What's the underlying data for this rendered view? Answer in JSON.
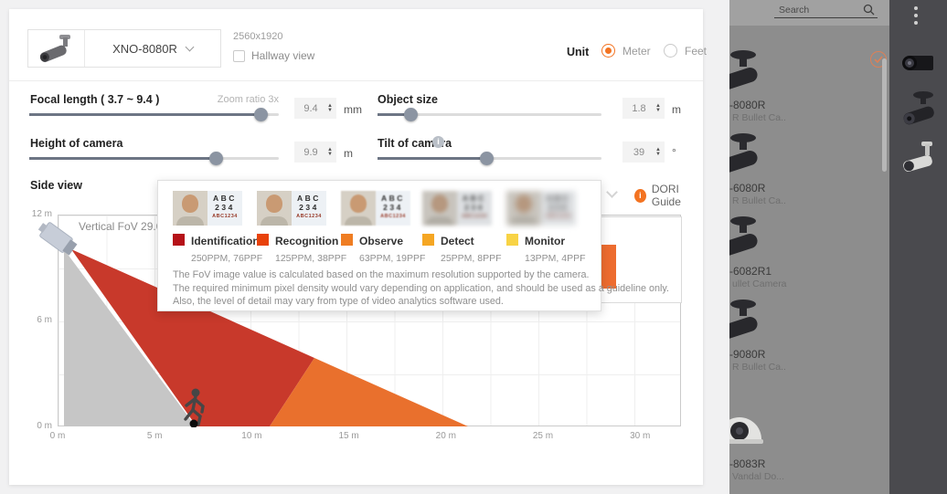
{
  "header": {
    "model": "XNO-8080R",
    "resolution": "2560x1920",
    "hallway_view_label": "Hallway view",
    "unit_label": "Unit",
    "unit_options": [
      "Meter",
      "Feet"
    ],
    "unit_selected": "Meter"
  },
  "controls": {
    "focal_length": {
      "label": "Focal length ( 3.7 ~ 9.4 )",
      "zoom_ratio": "Zoom ratio 3x",
      "value": "9.4",
      "unit": "mm"
    },
    "object_size": {
      "label": "Object size",
      "value": "1.8",
      "unit": "m"
    },
    "camera_height": {
      "label": "Height of camera",
      "value": "9.9",
      "unit": "m"
    },
    "tilt": {
      "label": "Tilt of camera",
      "value": "39",
      "unit": "°"
    }
  },
  "side_view": {
    "title": "Side view",
    "fov_label": "Vertical FoV 29.00°",
    "dori_guide_label": "DORI Guide",
    "y_ticks": [
      "12 m",
      "6 m",
      "0 m"
    ],
    "x_ticks": [
      "0 m",
      "5 m",
      "10 m",
      "15 m",
      "20 m",
      "25 m",
      "30 m"
    ],
    "zone_colors": {
      "dead": "#c6c6c6",
      "near": "#c8392b",
      "far": "#e9702d",
      "object_bar": "#ed6c2f"
    }
  },
  "dori_tooltip": {
    "card_lines": [
      "ABC",
      "234",
      "ABC1234"
    ],
    "levels": [
      {
        "name": "Identification",
        "detail": "250PPM, 76PPF",
        "color": "#b51218"
      },
      {
        "name": "Recognition",
        "detail": "125PPM, 38PPF",
        "color": "#e8420b"
      },
      {
        "name": "Observe",
        "detail": "63PPM, 19PPF",
        "color": "#ef7d23"
      },
      {
        "name": "Detect",
        "detail": "25PPM, 8PPF",
        "color": "#f5a623"
      },
      {
        "name": "Monitor",
        "detail": "13PPM, 4PPF",
        "color": "#f8d345"
      }
    ],
    "notes": [
      "The FoV image value is calculated based on the maximum resolution supported by the camera.",
      "The required minimum pixel density would vary depending on application, and should be used as a guideline only.",
      "Also, the level of detail may vary from type of video analytics software used."
    ]
  },
  "camera_panel": {
    "search_placeholder": "Search",
    "items": [
      {
        "name": "-8080R",
        "subtitle": "R Bullet Ca..",
        "type": "bullet",
        "selected": true
      },
      {
        "name": "-6080R",
        "subtitle": "R Bullet Ca..",
        "type": "bullet",
        "selected": false
      },
      {
        "name": "-6082R1",
        "subtitle": "ullet Camera",
        "type": "bullet",
        "selected": false
      },
      {
        "name": "-9080R",
        "subtitle": "R Bullet Ca..",
        "type": "bullet",
        "selected": false
      },
      {
        "name": "-8083R",
        "subtitle": "Vandal Do...",
        "type": "dome",
        "selected": false
      }
    ]
  },
  "chart_data": {
    "type": "area",
    "title": "Side view",
    "x_range_m": [
      0,
      30
    ],
    "y_range_m": [
      0,
      12
    ],
    "camera_height_m": 9.9,
    "tilt_deg": 39,
    "vertical_fov_deg": 29.0,
    "focal_length_mm": 9.4,
    "object_height_m": 1.8,
    "object_position_m": 7,
    "coverage_ground_m": [
      7,
      21.3
    ]
  }
}
